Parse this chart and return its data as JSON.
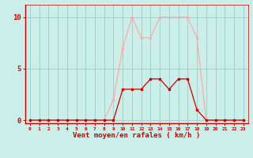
{
  "x": [
    0,
    1,
    2,
    3,
    4,
    5,
    6,
    7,
    8,
    9,
    10,
    11,
    12,
    13,
    14,
    15,
    16,
    17,
    18,
    19,
    20,
    21,
    22,
    23
  ],
  "y_mean": [
    0,
    0,
    0,
    0,
    0,
    0,
    0,
    0,
    0,
    0,
    3,
    3,
    3,
    4,
    4,
    3,
    4,
    4,
    1,
    0,
    0,
    0,
    0,
    0
  ],
  "y_gust": [
    0,
    0,
    0,
    0,
    0,
    0,
    0,
    0,
    0,
    2,
    7,
    10,
    8,
    8,
    10,
    10,
    10,
    10,
    8,
    0,
    0,
    0,
    0,
    0
  ],
  "line_color_mean": "#cc0000",
  "line_color_gust": "#ffaaaa",
  "bg_color": "#cceee8",
  "grid_color": "#99cccc",
  "axis_color": "#cc0000",
  "tick_color": "#cc0000",
  "label_color": "#cc0000",
  "xlabel": "Vent moyen/en rafales ( km/h )",
  "yticks": [
    0,
    5,
    10
  ],
  "ylim": [
    -0.3,
    11.2
  ],
  "xlim": [
    -0.5,
    23.5
  ],
  "marker": "s",
  "markersize": 1.8,
  "linewidth": 0.9
}
